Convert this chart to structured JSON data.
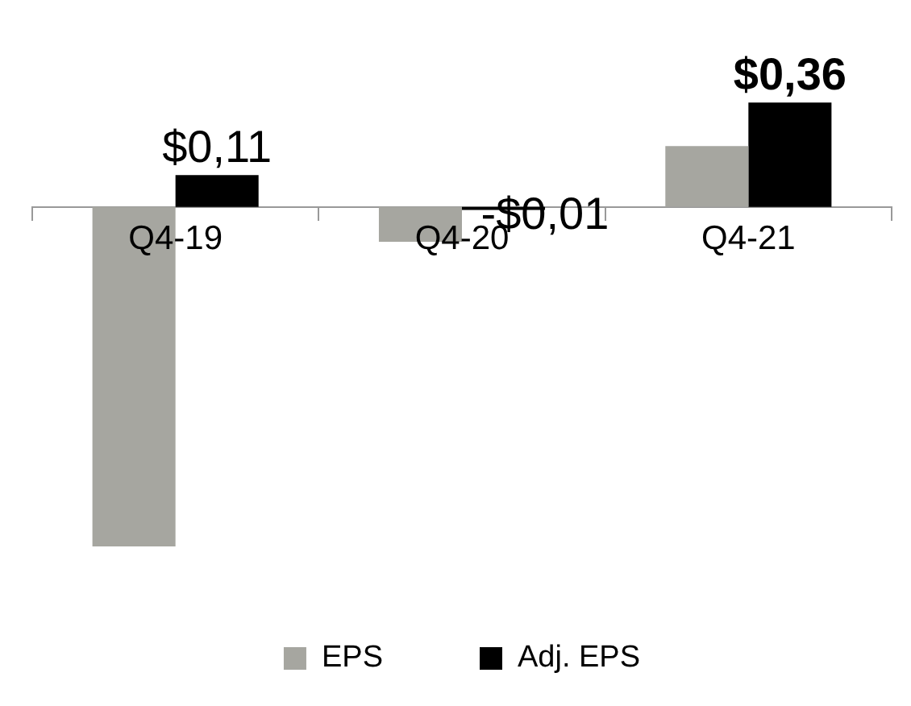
{
  "chart_data": {
    "type": "bar",
    "categories": [
      "Q4-19",
      "Q4-20",
      "Q4-21"
    ],
    "series": [
      {
        "name": "EPS",
        "color": "#a6a6a0",
        "values": [
          -1.17,
          -0.12,
          0.21
        ]
      },
      {
        "name": "Adj. EPS",
        "color": "#000000",
        "values": [
          0.11,
          -0.01,
          0.36
        ],
        "value_labels": [
          "$0,11",
          "-$0,01",
          "$0,36"
        ]
      }
    ],
    "tick_labels": "x",
    "grid": false,
    "legend": "bottom"
  }
}
